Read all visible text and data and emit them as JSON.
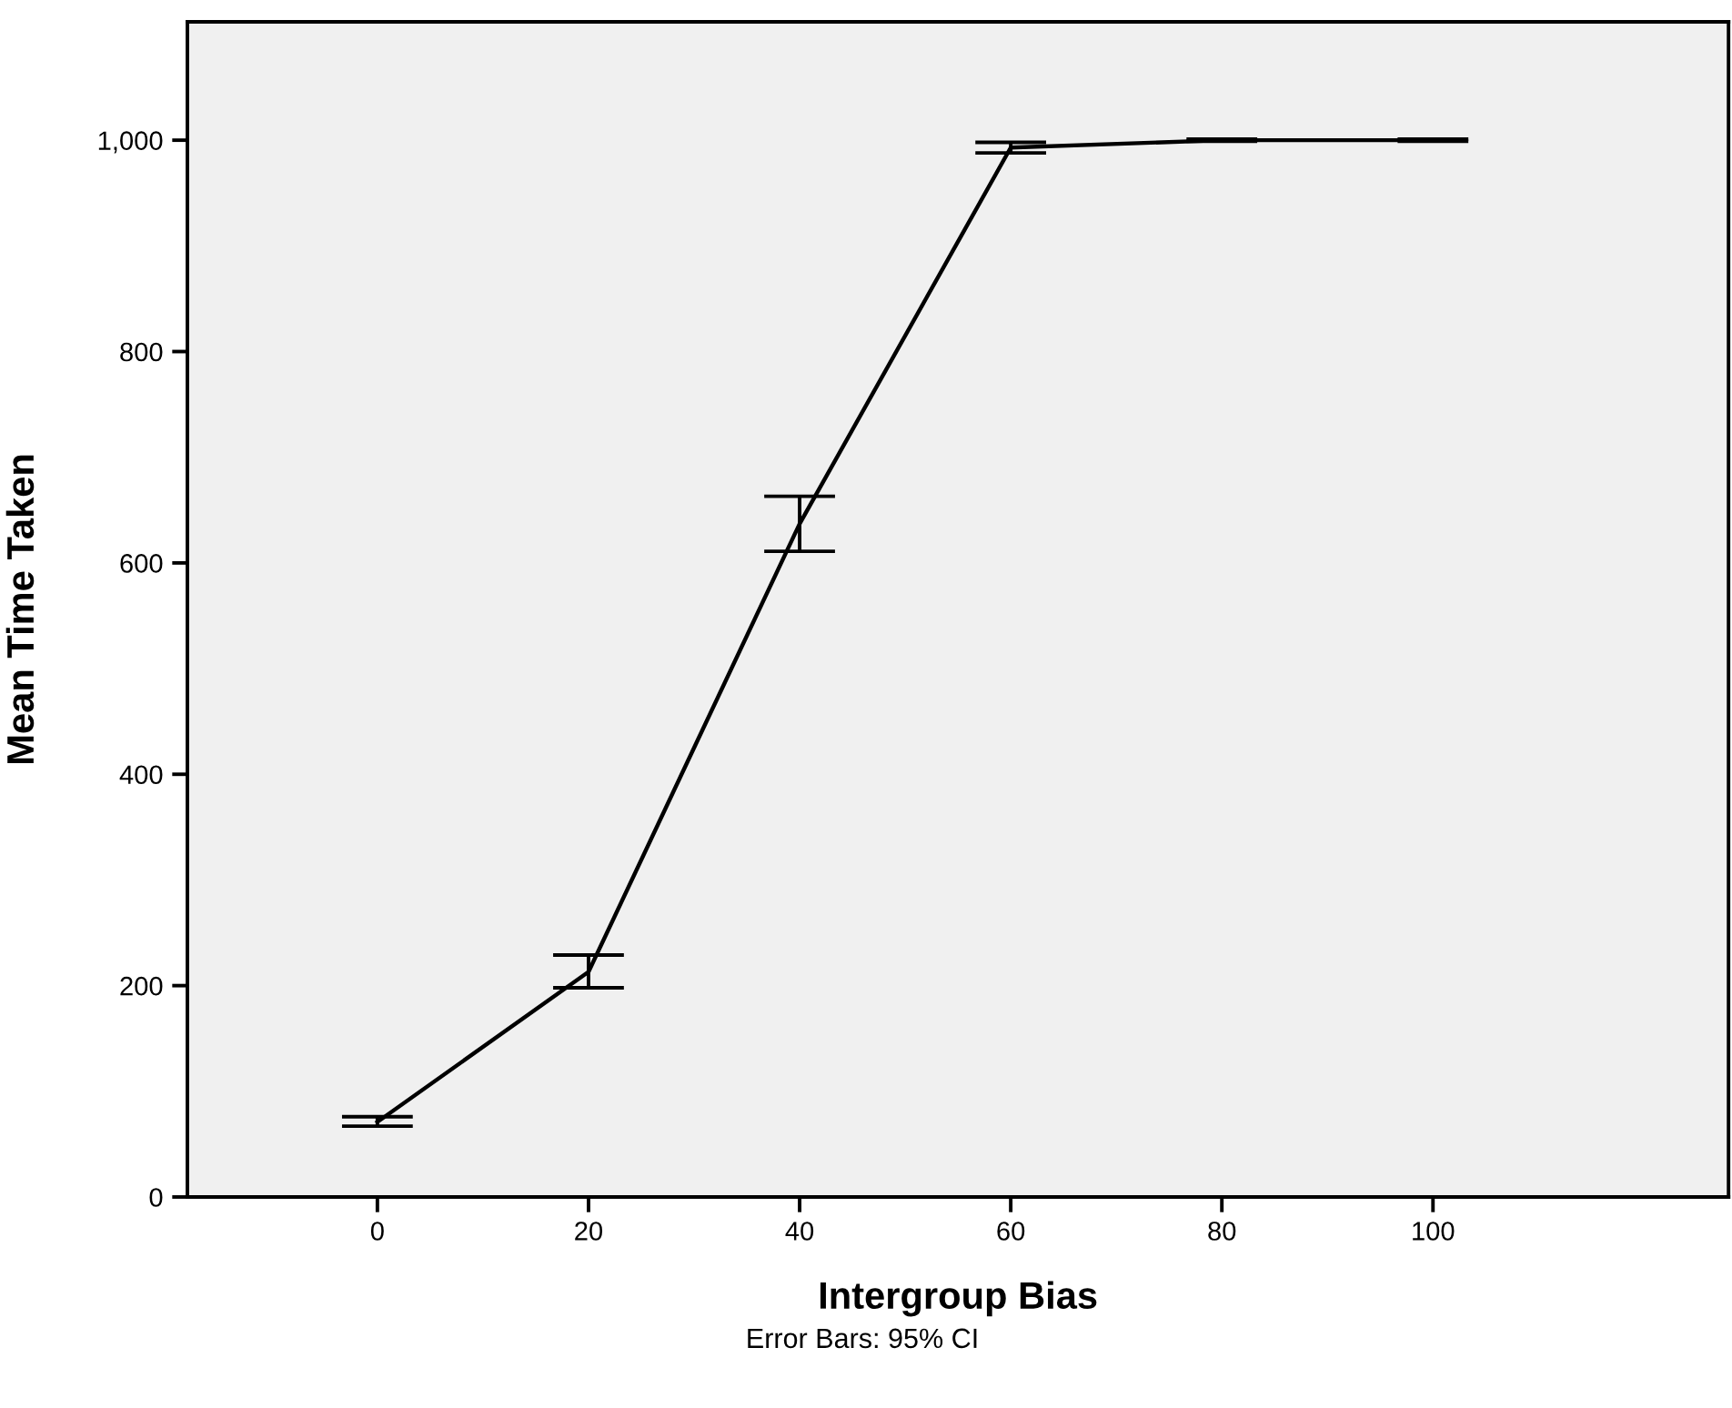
{
  "chart_data": {
    "type": "line",
    "xlabel": "Intergroup Bias",
    "ylabel": "Mean Time Taken",
    "x": [
      0,
      20,
      40,
      60,
      80,
      100
    ],
    "series": [
      {
        "color": "#000000",
        "values": [
          71,
          213,
          637,
          993,
          1000,
          1000
        ],
        "errors": [
          [
            67,
            76
          ],
          [
            198,
            229
          ],
          [
            611,
            663
          ],
          [
            988,
            998
          ],
          [
            999,
            1001
          ],
          [
            999,
            1001
          ]
        ]
      }
    ],
    "xlim": [
      -18,
      128
    ],
    "xticks": [
      0,
      20,
      40,
      60,
      80,
      100
    ],
    "ylim": [
      0,
      1112
    ],
    "yticks": [
      0,
      200,
      400,
      600,
      800,
      {
        "value": 1000,
        "label": "1,000"
      }
    ],
    "marker": "none",
    "line_style": "solid",
    "grid": false,
    "annotations": [
      "Error Bars: 95% CI"
    ]
  }
}
